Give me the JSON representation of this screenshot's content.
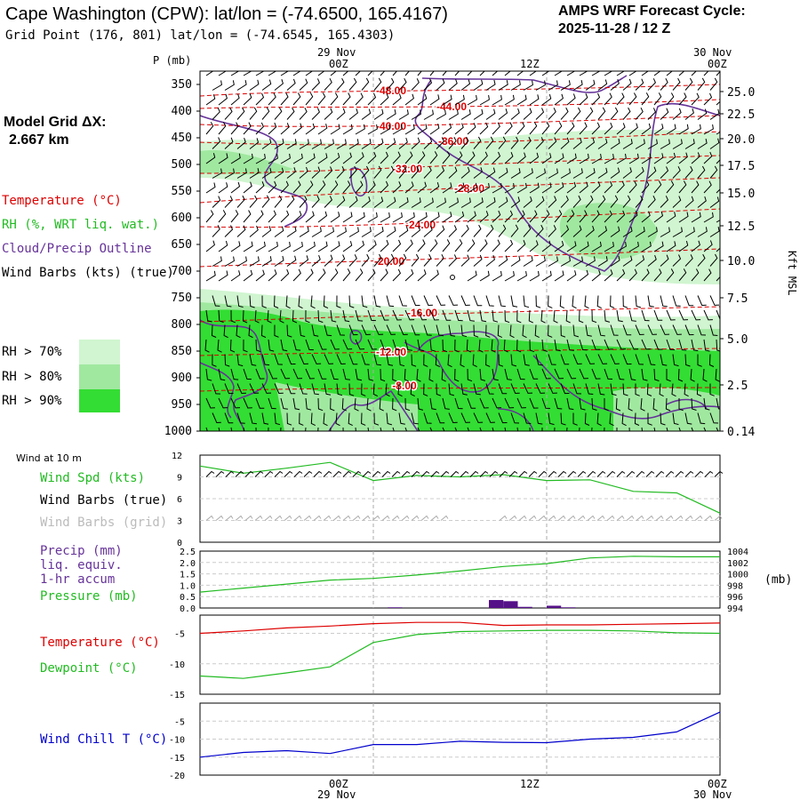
{
  "header": {
    "title": "Cape Washington (CPW):  lat/lon = (-74.6500, 165.4167)",
    "grid_point": "Grid Point (176, 801) lat/lon = (-74.6545, 165.4303)",
    "cycle_label": "AMPS WRF Forecast Cycle:",
    "cycle_value": "2025-11-28 / 12  Z"
  },
  "model_grid": {
    "label": "Model Grid ΔX:",
    "value": "2.667 km"
  },
  "time_axis": {
    "top_dates": [
      "29 Nov",
      "30 Nov"
    ],
    "labels": [
      "00Z",
      "12Z",
      "00Z"
    ],
    "bottom_dates": [
      "29 Nov",
      "30 Nov"
    ]
  },
  "colors": {
    "temperature": "#dd0000",
    "rh": "#22bb22",
    "cloud": "#663399",
    "wind_chill": "#0000cc",
    "rh70": "#d0f5d0",
    "rh80": "#a0e8a0",
    "rh90": "#33dd33"
  },
  "legend": {
    "temperature": "Temperature (°C)",
    "rh": "RH (%, WRT liq. wat.)",
    "cloud": "Cloud/Precip Outline",
    "wind": "Wind Barbs (kts) (true)",
    "rh70": "RH > 70%",
    "rh80": "RH > 80%",
    "rh90": "RH > 90%"
  },
  "bottom_legends": {
    "wind_title": "Wind at 10 m",
    "wind_spd": "Wind Spd (kts)",
    "wind_barbs_true": "Wind Barbs (true)",
    "wind_barbs_grid": "Wind Barbs (grid)",
    "precip1": "Precip (mm)",
    "precip2": "liq. equiv.",
    "precip3": "1-hr accum",
    "pressure": "Pressure (mb)",
    "pressure_unit": "(mb)",
    "temperature": "Temperature (°C)",
    "dewpoint": "Dewpoint (°C)",
    "wind_chill": "Wind Chill T (°C)"
  },
  "chart_data": [
    {
      "type": "cross-section",
      "title": "AMPS WRF time-height cross section",
      "ylabel": "P (mb)",
      "ylabel_right": "Kft MSL",
      "pressure_levels": [
        350,
        400,
        450,
        500,
        550,
        600,
        650,
        700,
        750,
        800,
        850,
        900,
        950,
        1000
      ],
      "height_ticks": [
        "25.0",
        "22.5",
        "20.0",
        "17.5",
        "15.0",
        "12.5",
        "10.0",
        "7.5",
        "5.0",
        "2.5",
        "0.14"
      ],
      "temperature_labels": [
        "-48.00",
        "-44.00",
        "-40.00",
        "-36.00",
        "-32.00",
        "-28.00",
        "-24.00",
        "-20.00",
        "-16.00",
        "-12.00",
        "-8.00"
      ],
      "ylim": [
        350,
        1000
      ]
    },
    {
      "type": "line",
      "title": "Wind at 10 m",
      "ylim": [
        0,
        12
      ],
      "yticks": [
        "0",
        "3",
        "6",
        "9",
        "12"
      ],
      "x_hours": [
        -12,
        -9,
        -6,
        -3,
        0,
        3,
        6,
        9,
        12,
        15,
        18,
        21,
        24
      ],
      "series": [
        {
          "name": "Wind Spd (kts)",
          "values": [
            10.5,
            9.5,
            10.2,
            11.0,
            8.5,
            9.2,
            9.0,
            9.3,
            8.5,
            8.6,
            7.0,
            6.8,
            4.0
          ]
        }
      ]
    },
    {
      "type": "bar+line",
      "title": "Precip / Pressure",
      "precip_ylim": [
        0,
        2.5
      ],
      "precip_ticks": [
        "0.0",
        "0.5",
        "1.0",
        "1.5",
        "2.0",
        "2.5"
      ],
      "pressure_ylim": [
        994,
        1004
      ],
      "pressure_ticks": [
        "994",
        "996",
        "998",
        "1000",
        "1002",
        "1004"
      ],
      "precip_bars": [
        {
          "hour": 1,
          "value": 0.03
        },
        {
          "hour": 8,
          "value": 0.35
        },
        {
          "hour": 9,
          "value": 0.3
        },
        {
          "hour": 10,
          "value": 0.05
        },
        {
          "hour": 12,
          "value": 0.1
        },
        {
          "hour": 13,
          "value": 0.03
        }
      ],
      "x_hours": [
        -12,
        -9,
        -6,
        -3,
        0,
        3,
        6,
        9,
        12,
        15,
        18,
        21,
        24
      ],
      "pressure_values": [
        996.8,
        997.5,
        998.2,
        998.9,
        999.2,
        999.8,
        1000.5,
        1001.3,
        1001.8,
        1002.8,
        1003.1,
        1003.0,
        1003.0
      ]
    },
    {
      "type": "line",
      "title": "Temperature / Dewpoint",
      "ylim": [
        -15,
        -2
      ],
      "yticks": [
        "-5",
        "-10",
        "-15"
      ],
      "x_hours": [
        -12,
        -9,
        -6,
        -3,
        0,
        3,
        6,
        9,
        12,
        15,
        18,
        21,
        24
      ],
      "series": [
        {
          "name": "Temperature (°C)",
          "values": [
            -5.0,
            -4.6,
            -4.1,
            -3.8,
            -3.4,
            -3.2,
            -3.2,
            -3.7,
            -3.6,
            -3.6,
            -3.5,
            -3.4,
            -3.3
          ]
        },
        {
          "name": "Dewpoint (°C)",
          "values": [
            -12.0,
            -12.4,
            -11.5,
            -10.5,
            -6.5,
            -5.2,
            -4.7,
            -4.6,
            -4.5,
            -4.5,
            -4.6,
            -4.9,
            -5.0
          ]
        }
      ]
    },
    {
      "type": "line",
      "title": "Wind Chill",
      "ylim": [
        -20,
        0
      ],
      "yticks": [
        "-5",
        "-10",
        "-15",
        "-20"
      ],
      "x_hours": [
        -12,
        -9,
        -6,
        -3,
        0,
        3,
        6,
        9,
        12,
        15,
        18,
        21,
        24
      ],
      "series": [
        {
          "name": "Wind Chill T (°C)",
          "values": [
            -15.0,
            -13.7,
            -13.2,
            -14.0,
            -11.5,
            -11.5,
            -10.6,
            -10.9,
            -11.0,
            -10.0,
            -9.5,
            -8.0,
            -2.5
          ]
        }
      ]
    }
  ]
}
